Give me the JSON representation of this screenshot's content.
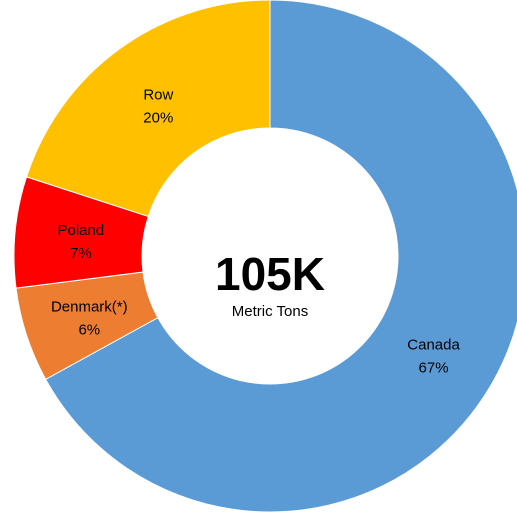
{
  "chart_data": {
    "type": "pie",
    "variant": "donut",
    "title": "",
    "center_value": "105K",
    "center_unit": "Metric Tons",
    "slices": [
      {
        "name": "Canada",
        "value": 67,
        "label": "67%",
        "color": "#5b9bd5"
      },
      {
        "name": "Denmark(*)",
        "value": 6,
        "label": "6%",
        "color": "#ed7d31"
      },
      {
        "name": "Poland",
        "value": 7,
        "label": "7%",
        "color": "#ff0000"
      },
      {
        "name": "Row",
        "value": 20,
        "label": "20%",
        "color": "#ffc000"
      }
    ],
    "legend": "none"
  }
}
